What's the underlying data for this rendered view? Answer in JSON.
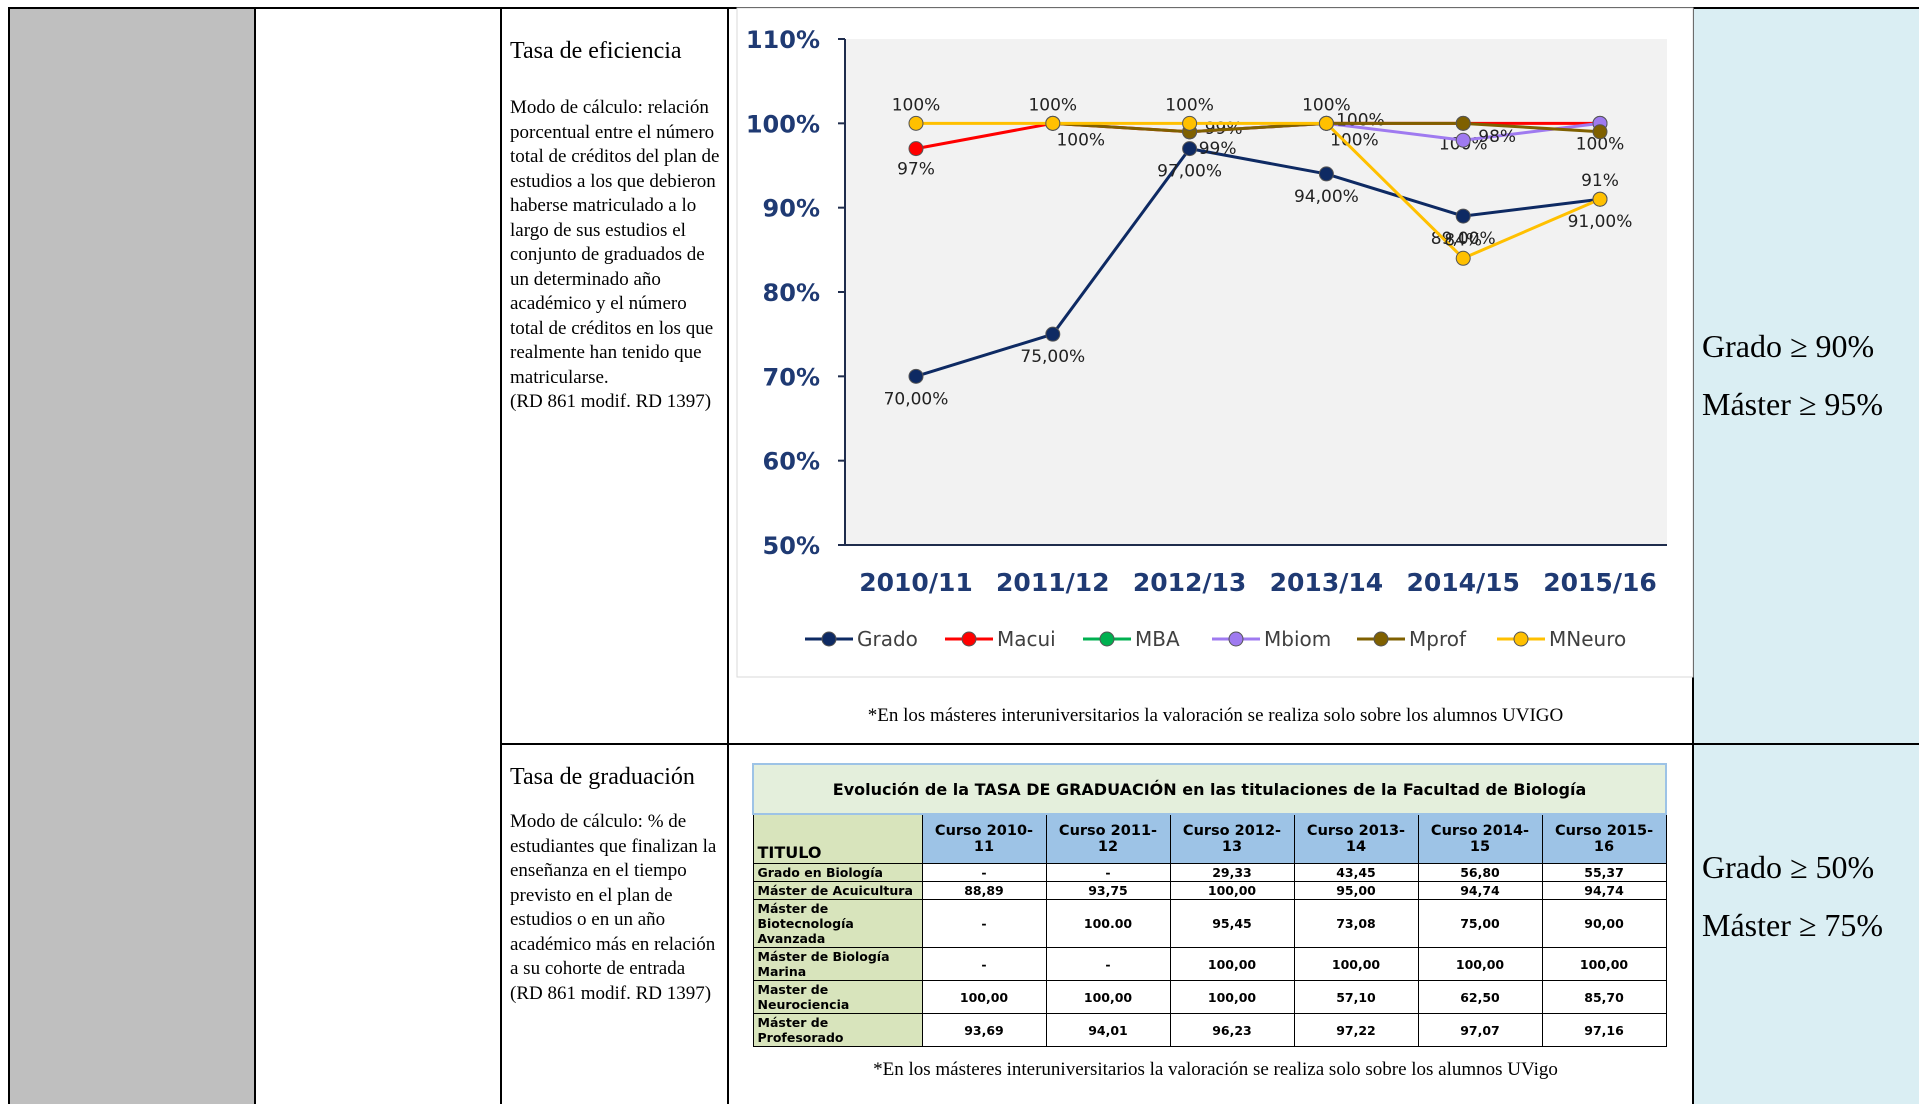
{
  "sections": [
    {
      "title": "Tasa de eficiencia",
      "description": "Modo de cálculo: relación porcentual entre el número total de créditos del plan de estudios a los que debieron haberse matriculado a lo largo de sus estudios el conjunto de graduados de un determinado año académico y el número total de créditos en los que realmente han tenido que matricularse.",
      "reference": "(RD 861 modif. RD 1397)",
      "footnote": "*En los másteres interuniversitarios la valoración se realiza solo sobre los alumnos UVIGO",
      "targets": [
        "Grado ≥ 90%",
        "Máster ≥ 95%"
      ]
    },
    {
      "title": "Tasa de graduación",
      "description": "Modo de cálculo: % de estudiantes que finalizan la enseñanza en el tiempo previsto en el plan de estudios o en un año académico más en relación a su cohorte de entrada",
      "reference": "(RD 861 modif. RD 1397)",
      "footnote": "*En los másteres interuniversitarios la valoración se realiza solo sobre los alumnos UVigo",
      "targets": [
        "Grado ≥ 50%",
        "Máster ≥ 75%"
      ]
    }
  ],
  "chart_data": {
    "type": "line",
    "categories": [
      "2010/11",
      "2011/12",
      "2012/13",
      "2013/14",
      "2014/15",
      "2015/16"
    ],
    "ylim": [
      50,
      110
    ],
    "yticks": [
      {
        "value": 50,
        "label": "50%"
      },
      {
        "value": 60,
        "label": "60%"
      },
      {
        "value": 70,
        "label": "70%"
      },
      {
        "value": 80,
        "label": "80%"
      },
      {
        "value": 90,
        "label": "90%"
      },
      {
        "value": 100,
        "label": "100%"
      },
      {
        "value": 110,
        "label": "110%"
      }
    ],
    "legend": "bottom",
    "series": [
      {
        "name": "Grado",
        "color": "#0e2a63",
        "values": [
          70,
          75,
          97,
          94,
          89,
          91
        ],
        "value_labels": [
          "70,00%",
          "75,00%",
          "97,00%",
          "94,00%",
          "89,00%",
          "91,00%"
        ]
      },
      {
        "name": "Macui",
        "color": "#ff0000",
        "values": [
          97,
          100,
          99,
          100,
          100,
          100
        ],
        "value_labels": [
          "97%",
          null,
          null,
          null,
          "100%",
          "100%"
        ]
      },
      {
        "name": "MBA",
        "color": "#00b050",
        "values": [
          null,
          null,
          null,
          null,
          null,
          null
        ]
      },
      {
        "name": "Mbiom",
        "color": "#9f7af0",
        "values": [
          null,
          null,
          99,
          100,
          98,
          100
        ],
        "value_labels": [
          null,
          null,
          "99%",
          "100%",
          "98%",
          null
        ]
      },
      {
        "name": "Mprof",
        "color": "#7f6000",
        "values": [
          null,
          100,
          99,
          100,
          100,
          99
        ],
        "value_labels": [
          null,
          "100%",
          "99%",
          "100%",
          null,
          null
        ]
      },
      {
        "name": "MNeuro",
        "color": "#ffc000",
        "values": [
          100,
          100,
          100,
          100,
          84,
          91
        ],
        "value_labels": [
          "100%",
          "100%",
          "100%",
          "100%",
          "84%",
          "91%"
        ]
      }
    ]
  },
  "table": {
    "title": "Evolución de la TASA DE GRADUACIÓN en las titulaciones de la Facultad de Biología",
    "header": [
      "TITULO",
      "Curso 2010-11",
      "Curso 2011-12",
      "Curso 2012-13",
      "Curso 2013-14",
      "Curso 2014-15",
      "Curso 2015-16"
    ],
    "rows": [
      [
        "Grado en Biología",
        "-",
        "-",
        "29,33",
        "43,45",
        "56,80",
        "55,37"
      ],
      [
        "Máster de Acuicultura",
        "88,89",
        "93,75",
        "100,00",
        "95,00",
        "94,74",
        "94,74"
      ],
      [
        "Máster de Biotecnología Avanzada",
        "-",
        "100.00",
        "95,45",
        "73,08",
        "75,00",
        "90,00"
      ],
      [
        "Máster de Biología Marina",
        "-",
        "-",
        "100,00",
        "100,00",
        "100,00",
        "100,00"
      ],
      [
        "Master de Neurociencia",
        "100,00",
        "100,00",
        "100,00",
        "57,10",
        "62,50",
        "85,70"
      ],
      [
        "Máster de Profesorado",
        "93,69",
        "94,01",
        "96,23",
        "97,22",
        "97,07",
        "97,16"
      ]
    ]
  }
}
